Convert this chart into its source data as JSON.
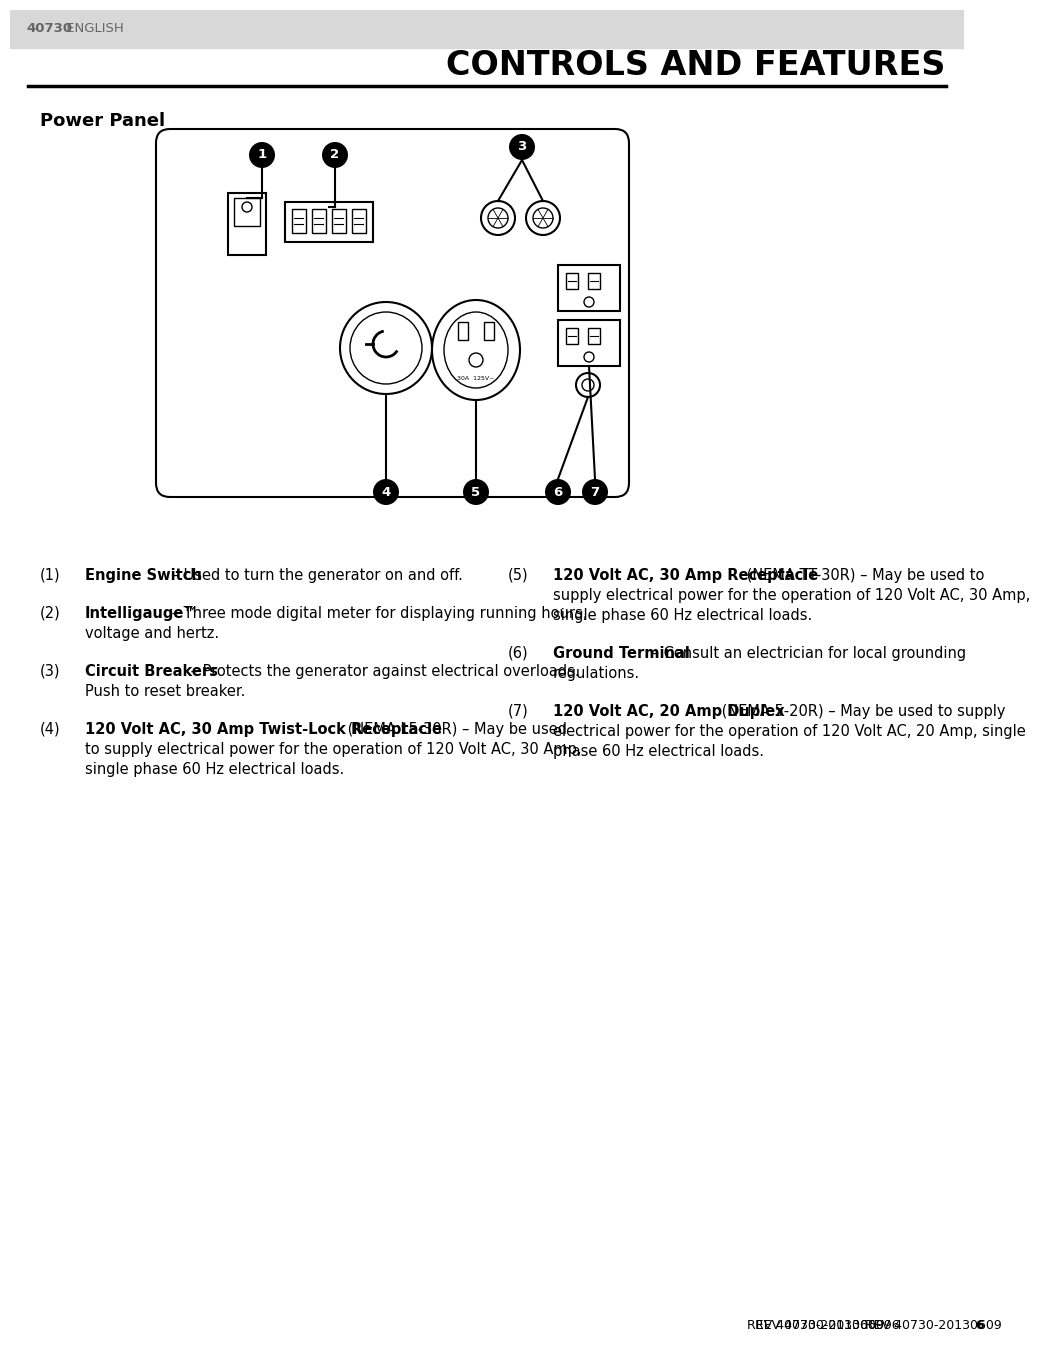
{
  "page_header_num": "40730",
  "page_header_lang": " ENGLISH",
  "page_title": "CONTROLS AND FEATURES",
  "section_title": "Power Panel",
  "bg_color": "#ffffff",
  "header_bg": "#d8d8d8",
  "footer_text": "REV 40730-20130609  ",
  "footer_bold": "6",
  "left_entries": [
    {
      "num": "(1)",
      "bold": "Engine Switch",
      "text": " – Used to turn the generator on and off."
    },
    {
      "num": "(2)",
      "bold": "Intelligauge™",
      "text": " – Three mode digital meter for displaying running hours, voltage and hertz."
    },
    {
      "num": "(3)",
      "bold": "Circuit Breakers",
      "text": " – Protects the generator against electrical overloads. Push to reset breaker."
    },
    {
      "num": "(4)",
      "bold": "120 Volt AC, 30 Amp Twist-Lock Receptacle",
      "text": " (NEMA L5-30R) – May be used to supply electrical power for the operation of 120 Volt AC, 30 Amp, single phase 60 Hz electrical loads."
    }
  ],
  "right_entries": [
    {
      "num": "(5)",
      "bold": "120 Volt AC, 30 Amp Receptacle",
      "text": " (NEMA TT-30R) – May be used to supply electrical power for the operation of 120 Volt AC, 30 Amp, single phase 60 Hz electrical loads."
    },
    {
      "num": "(6)",
      "bold": "Ground Terminal",
      "text": " – Consult an electrician for local grounding regulations."
    },
    {
      "num": "(7)",
      "bold": "120 Volt AC, 20 Amp Duplex",
      "text": " (NEMA 5-20R) – May be used to supply electrical power for the operation of 120 Volt AC, 20 Amp, single phase 60 Hz electrical loads."
    }
  ]
}
